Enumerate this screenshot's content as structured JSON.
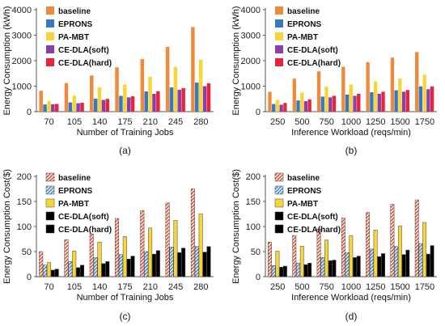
{
  "styles": {
    "baseline": {
      "fill": "#ef8a3c",
      "pattern": "hatch"
    },
    "EPRONS": {
      "fill": "#3579c3",
      "pattern": "hatch"
    },
    "PA-MBT": {
      "fill": "#f6d53b",
      "pattern": "none"
    },
    "CE-DLA(soft)": {
      "fill": "#8b3fae",
      "pattern": "dots"
    },
    "CE-DLA(hard)": {
      "fill": "#e8243b",
      "pattern": "dots"
    }
  },
  "chart_data": [
    {
      "type": "bar",
      "panel": "a",
      "caption": "(a)",
      "ylabel": "Energy Consumption (kWh)",
      "xlabel": "Number of Training Jobs",
      "ylim": [
        0,
        4000
      ],
      "yticks": [
        "0",
        "1000",
        "2000",
        "3000",
        "4000"
      ],
      "ytick_values": [
        0,
        1000,
        2000,
        3000,
        4000
      ],
      "grid": false,
      "legend_position": "top-left",
      "style": "solid",
      "categories": [
        "70",
        "105",
        "140",
        "175",
        "210",
        "245",
        "280"
      ],
      "series": [
        {
          "name": "baseline",
          "values": [
            820,
            1120,
            1420,
            1740,
            2060,
            2540,
            3320
          ]
        },
        {
          "name": "EPRONS",
          "values": [
            280,
            360,
            510,
            620,
            790,
            950,
            1140
          ]
        },
        {
          "name": "PA-MBT",
          "values": [
            420,
            630,
            950,
            1060,
            1370,
            1760,
            2040
          ]
        },
        {
          "name": "CE-DLA(soft)",
          "values": [
            290,
            330,
            460,
            560,
            700,
            860,
            1000
          ]
        },
        {
          "name": "CE-DLA(hard)",
          "values": [
            300,
            350,
            500,
            600,
            800,
            920,
            1110
          ]
        }
      ]
    },
    {
      "type": "bar",
      "panel": "b",
      "caption": "(b)",
      "ylabel": "Energy Consumption (kWh)",
      "xlabel": "Inference Workload (reqs/min)",
      "ylim": [
        0,
        4000
      ],
      "yticks": [
        "0",
        "1000",
        "2000",
        "3000",
        "4000"
      ],
      "ytick_values": [
        0,
        1000,
        2000,
        3000,
        4000
      ],
      "grid": false,
      "legend_position": "top-left",
      "style": "solid",
      "categories": [
        "250",
        "500",
        "750",
        "1000",
        "1250",
        "1500",
        "1750"
      ],
      "series": [
        {
          "name": "baseline",
          "values": [
            780,
            1290,
            1580,
            1760,
            1940,
            2120,
            2340
          ]
        },
        {
          "name": "EPRONS",
          "values": [
            300,
            440,
            590,
            670,
            760,
            840,
            990
          ]
        },
        {
          "name": "PA-MBT",
          "values": [
            460,
            750,
            980,
            1060,
            1190,
            1300,
            1450
          ]
        },
        {
          "name": "CE-DLA(soft)",
          "values": [
            270,
            410,
            560,
            620,
            700,
            780,
            880
          ]
        },
        {
          "name": "CE-DLA(hard)",
          "values": [
            340,
            480,
            620,
            700,
            780,
            850,
            990
          ]
        }
      ]
    },
    {
      "type": "bar",
      "panel": "c",
      "caption": "(c)",
      "ylabel": "Energy Consumption Cost($)",
      "xlabel": "Number of Training Jobs",
      "ylim": [
        0,
        200
      ],
      "yticks": [
        "0",
        "50",
        "100",
        "150",
        "200"
      ],
      "ytick_values": [
        0,
        50,
        100,
        150,
        200
      ],
      "grid": false,
      "legend_position": "top-left",
      "style": "patterned",
      "categories": [
        "70",
        "105",
        "140",
        "175",
        "210",
        "245",
        "280"
      ],
      "series": [
        {
          "name": "baseline",
          "values": [
            50,
            74,
            85,
            116,
            132,
            147,
            175
          ]
        },
        {
          "name": "EPRONS",
          "values": [
            23,
            30,
            38,
            44,
            50,
            59,
            60
          ]
        },
        {
          "name": "PA-MBT",
          "values": [
            28,
            51,
            69,
            80,
            97,
            112,
            125
          ]
        },
        {
          "name": "CE-DLA(soft)",
          "values": [
            13,
            18,
            26,
            35,
            45,
            48,
            49
          ]
        },
        {
          "name": "CE-DLA(hard)",
          "values": [
            15,
            23,
            30,
            41,
            52,
            57,
            60
          ]
        }
      ]
    },
    {
      "type": "bar",
      "panel": "d",
      "caption": "(d)",
      "ylabel": "Energy Consumption Cost($)",
      "xlabel": "Inference Workload (reqs/min)",
      "ylim": [
        0,
        200
      ],
      "yticks": [
        "0",
        "50",
        "100",
        "150",
        "200"
      ],
      "ytick_values": [
        0,
        50,
        100,
        150,
        200
      ],
      "grid": false,
      "legend_position": "top-left",
      "style": "patterned",
      "categories": [
        "250",
        "500",
        "750",
        "1000",
        "1250",
        "1500",
        "1750"
      ],
      "series": [
        {
          "name": "baseline",
          "values": [
            69,
            82,
            95,
            117,
            128,
            144,
            153
          ]
        },
        {
          "name": "EPRONS",
          "values": [
            22,
            27,
            38,
            48,
            55,
            60,
            66
          ]
        },
        {
          "name": "PA-MBT",
          "values": [
            51,
            61,
            73,
            82,
            93,
            101,
            108
          ]
        },
        {
          "name": "CE-DLA(soft)",
          "values": [
            19,
            24,
            32,
            38,
            40,
            44,
            45
          ]
        },
        {
          "name": "CE-DLA(hard)",
          "values": [
            21,
            27,
            33,
            41,
            46,
            53,
            62
          ]
        }
      ]
    }
  ]
}
